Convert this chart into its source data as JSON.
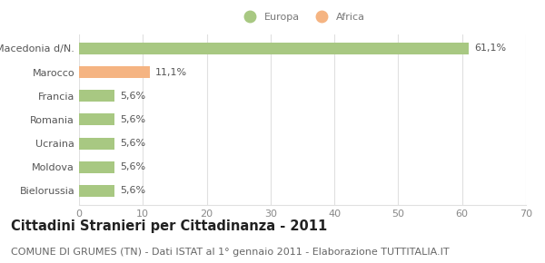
{
  "categories": [
    "Macedonia d/N.",
    "Marocco",
    "Francia",
    "Romania",
    "Ucraina",
    "Moldova",
    "Bielorussia"
  ],
  "values": [
    61.1,
    11.1,
    5.6,
    5.6,
    5.6,
    5.6,
    5.6
  ],
  "labels": [
    "61,1%",
    "11,1%",
    "5,6%",
    "5,6%",
    "5,6%",
    "5,6%",
    "5,6%"
  ],
  "colors": [
    "#a8c882",
    "#f5b482",
    "#a8c882",
    "#a8c882",
    "#a8c882",
    "#a8c882",
    "#a8c882"
  ],
  "legend_labels": [
    "Europa",
    "Africa"
  ],
  "legend_colors": [
    "#a8c882",
    "#f5b482"
  ],
  "xlim": [
    0,
    70
  ],
  "xticks": [
    0,
    10,
    20,
    30,
    40,
    50,
    60,
    70
  ],
  "title": "Cittadini Stranieri per Cittadinanza - 2011",
  "subtitle": "COMUNE DI GRUMES (TN) - Dati ISTAT al 1° gennaio 2011 - Elaborazione TUTTITALIA.IT",
  "background_color": "#ffffff",
  "grid_color": "#e0e0e0",
  "bar_height": 0.5,
  "label_fontsize": 8.0,
  "tick_fontsize": 8.0,
  "title_fontsize": 10.5,
  "subtitle_fontsize": 8.0
}
